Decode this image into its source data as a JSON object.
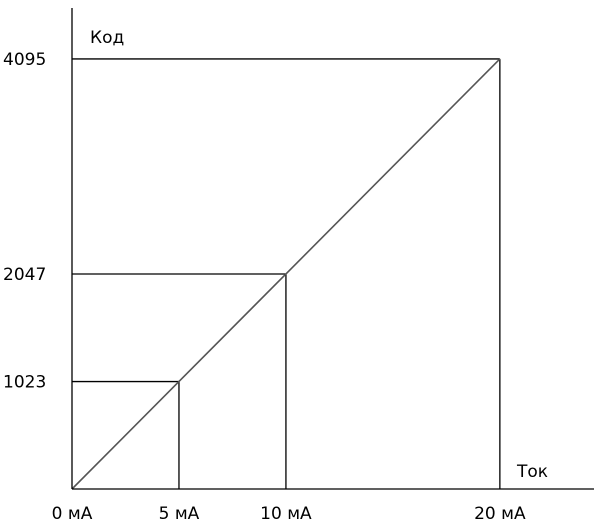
{
  "chart_data": {
    "type": "line",
    "xlabel": "Ток",
    "ylabel": "Код",
    "x_ticks": [
      {
        "value": 0,
        "label": "0 мА"
      },
      {
        "value": 5,
        "label": "5 мА"
      },
      {
        "value": 10,
        "label": "10 мА"
      },
      {
        "value": 20,
        "label": "20 мА"
      }
    ],
    "y_ticks": [
      {
        "value": 1023,
        "label": "1023"
      },
      {
        "value": 2047,
        "label": "2047"
      },
      {
        "value": 4095,
        "label": "4095"
      }
    ],
    "xlim": [
      0,
      24.4
    ],
    "ylim": [
      0,
      4580
    ],
    "series": [
      {
        "x": [
          0,
          20
        ],
        "y": [
          0,
          4095
        ]
      }
    ],
    "guides": [
      {
        "x": 5,
        "y": 1023
      },
      {
        "x": 10,
        "y": 2047
      },
      {
        "x": 20,
        "y": 4095
      }
    ],
    "grid": false,
    "colors": {
      "axis": "#000000",
      "line": "#555555",
      "guide": "#000000"
    }
  }
}
